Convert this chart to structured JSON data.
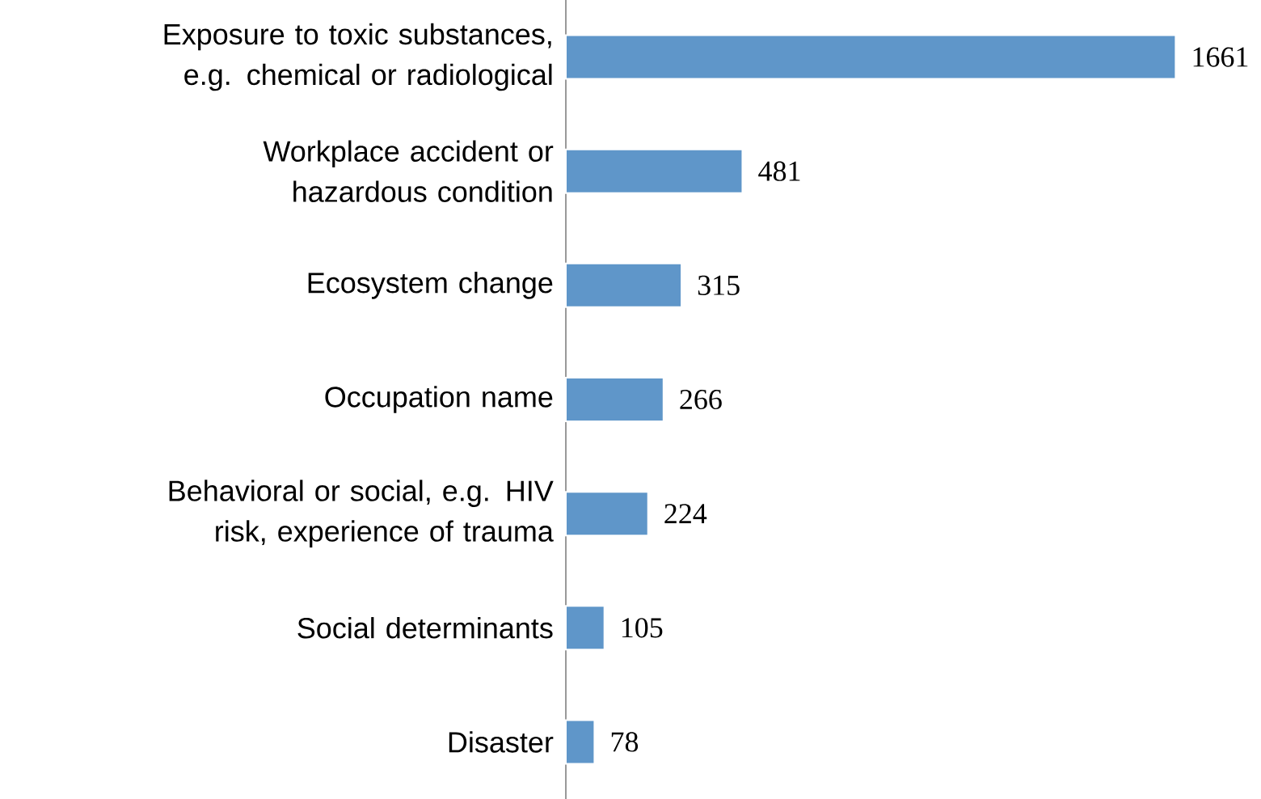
{
  "chart_data": {
    "type": "bar",
    "orientation": "horizontal",
    "categories": [
      "Exposure to toxic substances, e.g. chemical or radiological",
      "Workplace accident or hazardous condition",
      "Ecosystem change",
      "Occupation name",
      "Behavioral or social, e.g. HIV risk, experience of trauma",
      "Social determinants",
      "Disaster"
    ],
    "values": [
      1661,
      481,
      315,
      266,
      224,
      105,
      78
    ],
    "color": "#5f96c9",
    "data_labels": true
  }
}
